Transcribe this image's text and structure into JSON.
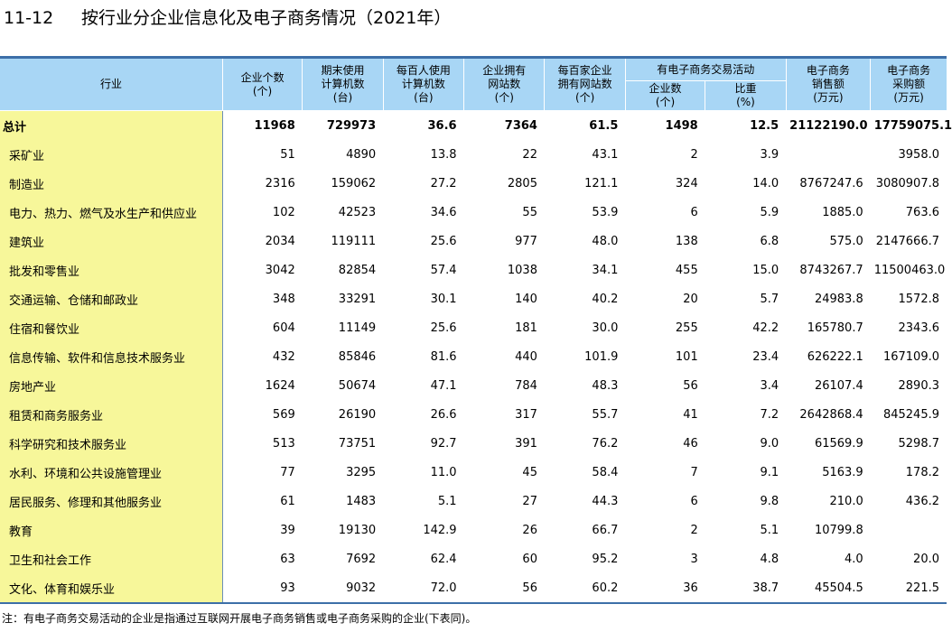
{
  "title": {
    "number": "11-12",
    "text": "按行业分企业信息化及电子商务情况（2021年）"
  },
  "header": {
    "industry": "行业",
    "enterprises": [
      "企业个数",
      "(个)"
    ],
    "computers": [
      "期末使用",
      "计算机数",
      "(台)"
    ],
    "computers_per_100": [
      "每百人使用",
      "计算机数",
      "(台)"
    ],
    "with_website": [
      "企业拥有",
      "网站数",
      "(个)"
    ],
    "websites_per_100": [
      "每百家企业",
      "拥有网站数",
      "(个)"
    ],
    "ecommerce_group": "有电子商务交易活动",
    "ec_enterprises": [
      "企业数",
      "(个)"
    ],
    "ec_share": [
      "比重",
      "(%)"
    ],
    "sales": [
      "电子商务",
      "销售额",
      "(万元)"
    ],
    "purchases": [
      "电子商务",
      "采购额",
      "(万元)"
    ]
  },
  "rows": [
    [
      "总计",
      "11968",
      "729973",
      "36.6",
      "7364",
      "61.5",
      "1498",
      "12.5",
      "21122190.0",
      "17759075.1"
    ],
    [
      "采矿业",
      "51",
      "4890",
      "13.8",
      "22",
      "43.1",
      "2",
      "3.9",
      "",
      "3958.0"
    ],
    [
      "制造业",
      "2316",
      "159062",
      "27.2",
      "2805",
      "121.1",
      "324",
      "14.0",
      "8767247.6",
      "3080907.8"
    ],
    [
      "电力、热力、燃气及水生产和供应业",
      "102",
      "42523",
      "34.6",
      "55",
      "53.9",
      "6",
      "5.9",
      "1885.0",
      "763.6"
    ],
    [
      "建筑业",
      "2034",
      "119111",
      "25.6",
      "977",
      "48.0",
      "138",
      "6.8",
      "575.0",
      "2147666.7"
    ],
    [
      "批发和零售业",
      "3042",
      "82854",
      "57.4",
      "1038",
      "34.1",
      "455",
      "15.0",
      "8743267.7",
      "11500463.0"
    ],
    [
      "交通运输、仓储和邮政业",
      "348",
      "33291",
      "30.1",
      "140",
      "40.2",
      "20",
      "5.7",
      "24983.8",
      "1572.8"
    ],
    [
      "住宿和餐饮业",
      "604",
      "11149",
      "25.6",
      "181",
      "30.0",
      "255",
      "42.2",
      "165780.7",
      "2343.6"
    ],
    [
      "信息传输、软件和信息技术服务业",
      "432",
      "85846",
      "81.6",
      "440",
      "101.9",
      "101",
      "23.4",
      "626222.1",
      "167109.0"
    ],
    [
      "房地产业",
      "1624",
      "50674",
      "47.1",
      "784",
      "48.3",
      "56",
      "3.4",
      "26107.4",
      "2890.3"
    ],
    [
      "租赁和商务服务业",
      "569",
      "26190",
      "26.6",
      "317",
      "55.7",
      "41",
      "7.2",
      "2642868.4",
      "845245.9"
    ],
    [
      "科学研究和技术服务业",
      "513",
      "73751",
      "92.7",
      "391",
      "76.2",
      "46",
      "9.0",
      "61569.9",
      "5298.7"
    ],
    [
      "水利、环境和公共设施管理业",
      "77",
      "3295",
      "11.0",
      "45",
      "58.4",
      "7",
      "9.1",
      "5163.9",
      "178.2"
    ],
    [
      "居民服务、修理和其他服务业",
      "61",
      "1483",
      "5.1",
      "27",
      "44.3",
      "6",
      "9.8",
      "210.0",
      "436.2"
    ],
    [
      "教育",
      "39",
      "19130",
      "142.9",
      "26",
      "66.7",
      "2",
      "5.1",
      "10799.8",
      ""
    ],
    [
      "卫生和社会工作",
      "63",
      "7692",
      "62.4",
      "60",
      "95.2",
      "3",
      "4.8",
      "4.0",
      "20.0"
    ],
    [
      "文化、体育和娱乐业",
      "93",
      "9032",
      "72.0",
      "56",
      "60.2",
      "36",
      "38.7",
      "45504.5",
      "221.5"
    ]
  ],
  "note": "注：有电子商务交易活动的企业是指通过互联网开展电子商务销售或电子商务采购的企业(下表同)。",
  "colors": {
    "header_bg": "#a8d6f5",
    "industry_bg": "#f7f79a",
    "rule": "#3d6fa8"
  }
}
